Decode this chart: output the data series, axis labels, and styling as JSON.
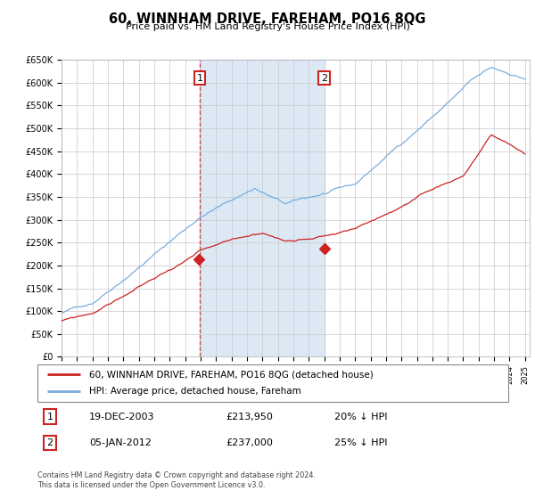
{
  "title": "60, WINNHAM DRIVE, FAREHAM, PO16 8QG",
  "subtitle": "Price paid vs. HM Land Registry's House Price Index (HPI)",
  "ylabel_ticks": [
    "£0",
    "£50K",
    "£100K",
    "£150K",
    "£200K",
    "£250K",
    "£300K",
    "£350K",
    "£400K",
    "£450K",
    "£500K",
    "£550K",
    "£600K",
    "£650K"
  ],
  "ytick_vals": [
    0,
    50000,
    100000,
    150000,
    200000,
    250000,
    300000,
    350000,
    400000,
    450000,
    500000,
    550000,
    600000,
    650000
  ],
  "hpi_color": "#7aacdc",
  "price_color": "#cc2222",
  "bg_color": "#ffffff",
  "grid_color": "#c8c8c8",
  "shade_color": "#dce9f5",
  "point1_price": 213950,
  "point1_date_str": "19-DEC-2003",
  "point1_pct": "20% ↓ HPI",
  "point2_price": 237000,
  "point2_date_str": "05-JAN-2012",
  "point2_pct": "25% ↓ HPI",
  "legend_line1": "60, WINNHAM DRIVE, FAREHAM, PO16 8QG (detached house)",
  "legend_line2": "HPI: Average price, detached house, Fareham",
  "footnote": "Contains HM Land Registry data © Crown copyright and database right 2024.\nThis data is licensed under the Open Government Licence v3.0."
}
